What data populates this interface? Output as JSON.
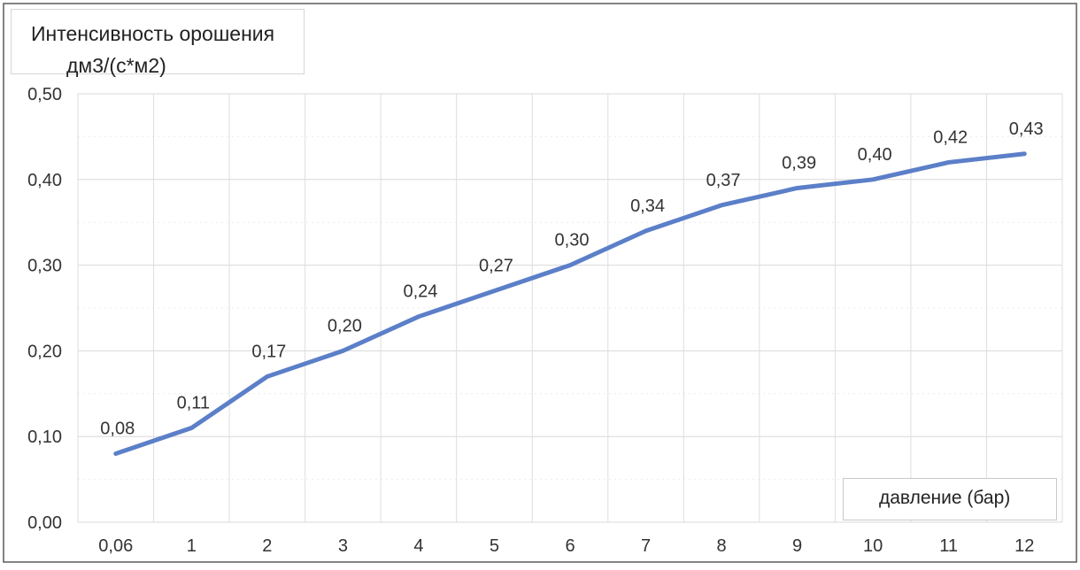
{
  "chart_data": {
    "type": "line",
    "ylabel_line1": "Интенсивность орошения",
    "ylabel_line2": "дм3/(с*м2)",
    "xlabel": "давление (бар)",
    "categories": [
      "0,06",
      "1",
      "2",
      "3",
      "4",
      "5",
      "6",
      "7",
      "8",
      "9",
      "10",
      "11",
      "12"
    ],
    "values": [
      0.08,
      0.11,
      0.17,
      0.2,
      0.24,
      0.27,
      0.3,
      0.34,
      0.37,
      0.39,
      0.4,
      0.42,
      0.43
    ],
    "value_labels": [
      "0,08",
      "0,11",
      "0,17",
      "0,20",
      "0,24",
      "0,27",
      "0,30",
      "0,34",
      "0,37",
      "0,39",
      "0,40",
      "0,42",
      "0,43"
    ],
    "ylim": [
      0,
      0.5
    ],
    "yticks": [
      0,
      0.1,
      0.2,
      0.3,
      0.4,
      0.5
    ],
    "ytick_labels": [
      "0,00",
      "0,10",
      "0,20",
      "0,30",
      "0,40",
      "0,50"
    ],
    "grid": true,
    "line_color": "#5b7fc8"
  }
}
